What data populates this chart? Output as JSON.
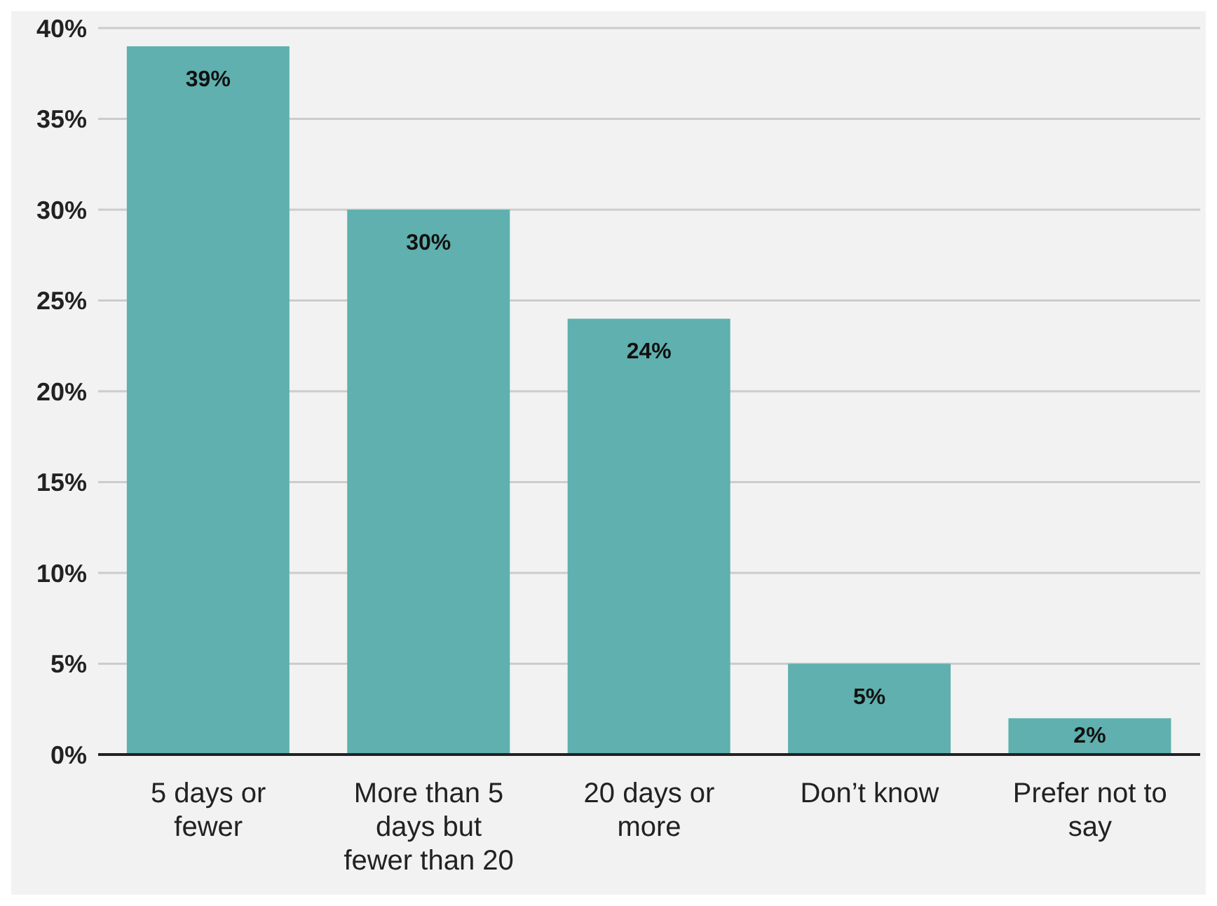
{
  "chart_data": {
    "type": "bar",
    "categories": [
      "5 days or fewer",
      "More than 5 days but fewer than 20",
      "20 days or more",
      "Don’t know",
      "Prefer not to say"
    ],
    "values": [
      39,
      30,
      24,
      5,
      2
    ],
    "value_labels": [
      "39%",
      "30%",
      "24%",
      "5%",
      "2%"
    ],
    "color": "#5fb0ae",
    "ylim": [
      0,
      40
    ],
    "yticks": [
      {
        "value": 0,
        "label": "0%"
      },
      {
        "value": 5,
        "label": "5%"
      },
      {
        "value": 10,
        "label": "10%"
      },
      {
        "value": 15,
        "label": "15%"
      },
      {
        "value": 20,
        "label": "20%"
      },
      {
        "value": 25,
        "label": "25%"
      },
      {
        "value": 30,
        "label": "30%"
      },
      {
        "value": 35,
        "label": "35%"
      },
      {
        "value": 40,
        "label": "40%"
      }
    ],
    "grid": "y"
  }
}
